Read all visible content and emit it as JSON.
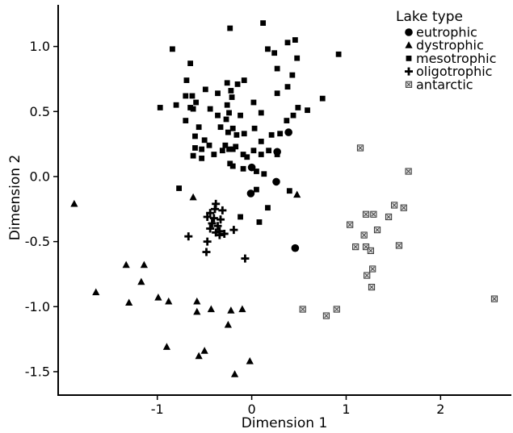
{
  "chart_data": {
    "type": "scatter",
    "title": "",
    "xlabel": "Dimension 1",
    "ylabel": "Dimension 2",
    "xlim": [
      -2.05,
      2.75
    ],
    "ylim": [
      -1.68,
      1.32
    ],
    "xticks": [
      -1,
      0,
      1,
      2
    ],
    "xtick_labels": [
      "-1",
      "0",
      "1",
      "2"
    ],
    "yticks": [
      1.0,
      0.5,
      0.0,
      -0.5,
      -1.0,
      -1.5
    ],
    "ytick_labels": [
      "1.0",
      "0.5",
      "0.0",
      "-0.5",
      "-1.0",
      "-1.5"
    ],
    "grid": false,
    "legend": {
      "title": "Lake type",
      "position": "top-right",
      "entries": [
        {
          "label": "eutrophic",
          "marker": "circle"
        },
        {
          "label": "dystrophic",
          "marker": "triangle"
        },
        {
          "label": "mesotrophic",
          "marker": "square"
        },
        {
          "label": "oligotrophic",
          "marker": "plus"
        },
        {
          "label": "antarctic",
          "marker": "boxed-x",
          "color": "#aaaaaa"
        }
      ]
    },
    "series": [
      {
        "name": "eutrophic",
        "marker": "circle",
        "color": "#000000",
        "points": [
          [
            0.0,
            0.07
          ],
          [
            -0.01,
            -0.13
          ],
          [
            0.27,
            0.19
          ],
          [
            0.39,
            0.34
          ],
          [
            0.26,
            -0.04
          ],
          [
            0.46,
            -0.55
          ]
        ]
      },
      {
        "name": "dystrophic",
        "marker": "triangle",
        "color": "#000000",
        "points": [
          [
            -1.88,
            -0.21
          ],
          [
            -0.62,
            -0.16
          ],
          [
            0.48,
            -0.14
          ],
          [
            -1.33,
            -0.68
          ],
          [
            -1.14,
            -0.68
          ],
          [
            -1.65,
            -0.89
          ],
          [
            -1.3,
            -0.97
          ],
          [
            -1.17,
            -0.81
          ],
          [
            -0.99,
            -0.93
          ],
          [
            -0.88,
            -0.96
          ],
          [
            -0.58,
            -0.96
          ],
          [
            -0.58,
            -1.04
          ],
          [
            -0.43,
            -1.02
          ],
          [
            -0.22,
            -1.03
          ],
          [
            -0.1,
            -1.02
          ],
          [
            -0.25,
            -1.14
          ],
          [
            -0.9,
            -1.31
          ],
          [
            -0.5,
            -1.34
          ],
          [
            -0.56,
            -1.38
          ],
          [
            -0.02,
            -1.42
          ],
          [
            -0.18,
            -1.52
          ]
        ]
      },
      {
        "name": "mesotrophic",
        "marker": "square",
        "color": "#000000",
        "points": [
          [
            0.12,
            1.18
          ],
          [
            -0.23,
            1.14
          ],
          [
            0.46,
            1.05
          ],
          [
            0.38,
            1.03
          ],
          [
            -0.84,
            0.98
          ],
          [
            0.17,
            0.98
          ],
          [
            0.24,
            0.95
          ],
          [
            0.48,
            0.91
          ],
          [
            0.92,
            0.94
          ],
          [
            -0.65,
            0.87
          ],
          [
            0.27,
            0.83
          ],
          [
            0.43,
            0.78
          ],
          [
            -0.69,
            0.74
          ],
          [
            -0.08,
            0.74
          ],
          [
            -0.26,
            0.72
          ],
          [
            -0.15,
            0.71
          ],
          [
            0.38,
            0.69
          ],
          [
            -0.49,
            0.67
          ],
          [
            -0.22,
            0.66
          ],
          [
            -0.36,
            0.64
          ],
          [
            0.27,
            0.64
          ],
          [
            -0.7,
            0.62
          ],
          [
            -0.63,
            0.62
          ],
          [
            -0.21,
            0.61
          ],
          [
            -0.8,
            0.55
          ],
          [
            -0.59,
            0.57
          ],
          [
            0.02,
            0.57
          ],
          [
            0.75,
            0.6
          ],
          [
            -0.97,
            0.53
          ],
          [
            -0.26,
            0.55
          ],
          [
            0.49,
            0.53
          ],
          [
            0.59,
            0.51
          ],
          [
            -0.62,
            0.52
          ],
          [
            -0.65,
            0.53
          ],
          [
            -0.24,
            0.49
          ],
          [
            -0.36,
            0.47
          ],
          [
            -0.27,
            0.44
          ],
          [
            0.1,
            0.49
          ],
          [
            0.44,
            0.47
          ],
          [
            -0.44,
            0.52
          ],
          [
            -0.12,
            0.47
          ],
          [
            -0.7,
            0.43
          ],
          [
            0.37,
            0.43
          ],
          [
            -0.33,
            0.38
          ],
          [
            -0.2,
            0.37
          ],
          [
            -0.56,
            0.38
          ],
          [
            0.03,
            0.37
          ],
          [
            -0.25,
            0.34
          ],
          [
            -0.08,
            0.33
          ],
          [
            0.3,
            0.33
          ],
          [
            -0.6,
            0.31
          ],
          [
            0.21,
            0.32
          ],
          [
            -0.16,
            0.32
          ],
          [
            -0.5,
            0.28
          ],
          [
            -0.28,
            0.24
          ],
          [
            0.1,
            0.27
          ],
          [
            -0.45,
            0.24
          ],
          [
            -0.31,
            0.2
          ],
          [
            -0.24,
            0.21
          ],
          [
            0.02,
            0.2
          ],
          [
            0.18,
            0.2
          ],
          [
            -0.6,
            0.22
          ],
          [
            -0.53,
            0.21
          ],
          [
            -0.2,
            0.21
          ],
          [
            -0.4,
            0.17
          ],
          [
            -0.09,
            0.17
          ],
          [
            -0.17,
            0.23
          ],
          [
            -0.05,
            0.15
          ],
          [
            0.1,
            0.17
          ],
          [
            -0.23,
            0.1
          ],
          [
            0.27,
            0.17
          ],
          [
            -0.53,
            0.14
          ],
          [
            -0.62,
            0.16
          ],
          [
            0.05,
            0.04
          ],
          [
            -0.09,
            0.06
          ],
          [
            -0.2,
            0.08
          ],
          [
            0.13,
            0.02
          ],
          [
            -0.77,
            -0.09
          ],
          [
            0.05,
            -0.1
          ],
          [
            0.4,
            -0.11
          ],
          [
            0.17,
            -0.24
          ],
          [
            0.08,
            -0.35
          ],
          [
            -0.12,
            -0.31
          ]
        ]
      },
      {
        "name": "oligotrophic",
        "marker": "plus",
        "color": "#000000",
        "points": [
          [
            -0.38,
            -0.21
          ],
          [
            -0.39,
            -0.25
          ],
          [
            -0.31,
            -0.26
          ],
          [
            -0.44,
            -0.28
          ],
          [
            -0.47,
            -0.31
          ],
          [
            -0.4,
            -0.32
          ],
          [
            -0.33,
            -0.33
          ],
          [
            -0.42,
            -0.36
          ],
          [
            -0.36,
            -0.38
          ],
          [
            -0.44,
            -0.4
          ],
          [
            -0.38,
            -0.43
          ],
          [
            -0.34,
            -0.42
          ],
          [
            -0.29,
            -0.44
          ],
          [
            -0.19,
            -0.41
          ],
          [
            -0.67,
            -0.46
          ],
          [
            -0.47,
            -0.5
          ],
          [
            -0.34,
            -0.45
          ],
          [
            -0.48,
            -0.58
          ],
          [
            -0.07,
            -0.63
          ]
        ]
      },
      {
        "name": "antarctic",
        "marker": "boxed-x",
        "color": "#aaaaaa",
        "points": [
          [
            1.15,
            0.22
          ],
          [
            1.66,
            0.04
          ],
          [
            1.51,
            -0.22
          ],
          [
            1.61,
            -0.24
          ],
          [
            1.21,
            -0.29
          ],
          [
            1.29,
            -0.29
          ],
          [
            1.45,
            -0.31
          ],
          [
            1.33,
            -0.41
          ],
          [
            1.04,
            -0.37
          ],
          [
            1.19,
            -0.45
          ],
          [
            1.1,
            -0.54
          ],
          [
            1.21,
            -0.54
          ],
          [
            1.26,
            -0.57
          ],
          [
            1.56,
            -0.53
          ],
          [
            1.28,
            -0.71
          ],
          [
            1.22,
            -0.76
          ],
          [
            1.27,
            -0.85
          ],
          [
            2.57,
            -0.94
          ],
          [
            0.54,
            -1.02
          ],
          [
            0.9,
            -1.02
          ],
          [
            0.79,
            -1.07
          ]
        ]
      }
    ]
  }
}
